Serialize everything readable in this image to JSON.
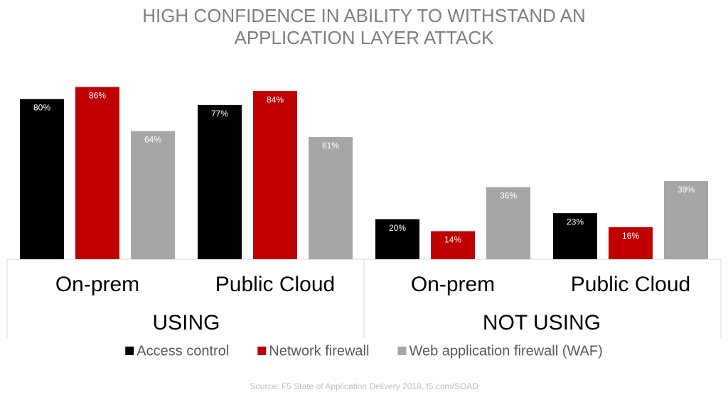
{
  "chart_data": {
    "type": "bar",
    "title": [
      "HIGH CONFIDENCE IN ABILITY TO WITHSTAND AN",
      "APPLICATION LAYER ATTACK"
    ],
    "categories": [
      "On-prem",
      "Public Cloud",
      "On-prem",
      "Public Cloud"
    ],
    "category_groups": [
      "USING",
      "NOT USING"
    ],
    "series": [
      {
        "name": "Access control",
        "color": "#000000",
        "values": [
          80,
          77,
          20,
          23
        ],
        "value_labels": [
          "80%",
          "77%",
          "20%",
          "23%"
        ]
      },
      {
        "name": "Network firewall",
        "color": "#c00000",
        "values": [
          86,
          84,
          14,
          16
        ],
        "value_labels": [
          "86%",
          "84%",
          "14%",
          "16%"
        ]
      },
      {
        "name": "Web application firewall (WAF)",
        "color": "#a6a6a6",
        "values": [
          64,
          61,
          36,
          39
        ],
        "value_labels": [
          "64%",
          "61%",
          "36%",
          "39%"
        ]
      }
    ],
    "source": "Source: F5 State of Application Delivery 2018, f5.com/SOAD"
  }
}
